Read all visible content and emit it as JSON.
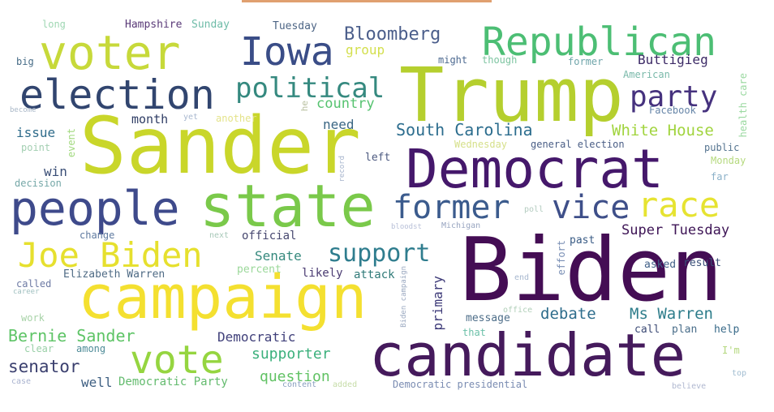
{
  "palette": {
    "background": "#ffffff",
    "accent_bar": "#e0a070"
  },
  "words": [
    {
      "text": "Trump",
      "color": "#b5cf2e"
    },
    {
      "text": "Sander",
      "color": "#c9d62a"
    },
    {
      "text": "Biden",
      "color": "#440d54"
    },
    {
      "text": "Democrat",
      "color": "#45186b"
    },
    {
      "text": "candidate",
      "color": "#451a5c"
    },
    {
      "text": "campaign",
      "color": "#f4e030"
    },
    {
      "text": "state",
      "color": "#7ac94a"
    },
    {
      "text": "people",
      "color": "#3e4a8b"
    },
    {
      "text": "voter",
      "color": "#c7d93a"
    },
    {
      "text": "election",
      "color": "#31456f"
    },
    {
      "text": "Republican",
      "color": "#4cbe74"
    },
    {
      "text": "Iowa",
      "color": "#3a4d87"
    },
    {
      "text": "vote",
      "color": "#95d540"
    },
    {
      "text": "Joe Biden",
      "color": "#e6e02e"
    },
    {
      "text": "former",
      "color": "#3b5b8d"
    },
    {
      "text": "vice",
      "color": "#3e4f89"
    },
    {
      "text": "race",
      "color": "#e6e331"
    },
    {
      "text": "political",
      "color": "#35897f"
    },
    {
      "text": "party",
      "color": "#46327e"
    },
    {
      "text": "support",
      "color": "#2f7d8e"
    },
    {
      "text": "Bloomberg",
      "color": "#4b5e8b"
    },
    {
      "text": "South Carolina",
      "color": "#2c6d8e"
    },
    {
      "text": "White House",
      "color": "#a1d43e"
    },
    {
      "text": "Super Tuesday",
      "color": "#3e1556"
    },
    {
      "text": "Bernie Sander",
      "color": "#5ec466"
    },
    {
      "text": "debate",
      "color": "#2e6d8c"
    },
    {
      "text": "Ms Warren",
      "color": "#2e7d8b"
    },
    {
      "text": "senator",
      "color": "#3a3f6e"
    },
    {
      "text": "supporter",
      "color": "#3bb07c"
    },
    {
      "text": "question",
      "color": "#61c264"
    },
    {
      "text": "Buttigieg",
      "color": "#3c2a66"
    },
    {
      "text": "country",
      "color": "#56c370"
    },
    {
      "text": "group",
      "color": "#d3df4d"
    },
    {
      "text": "need",
      "color": "#3a6683"
    },
    {
      "text": "issue",
      "color": "#2e6b8a"
    },
    {
      "text": "month",
      "color": "#2f3d65"
    },
    {
      "text": "win",
      "color": "#3b4f77"
    },
    {
      "text": "Senate",
      "color": "#35897d"
    },
    {
      "text": "official",
      "color": "#474870"
    },
    {
      "text": "likely",
      "color": "#4a3b72"
    },
    {
      "text": "attack",
      "color": "#2f7a78"
    },
    {
      "text": "Democratic",
      "color": "#40407a"
    },
    {
      "text": "primary",
      "color": "#3d3a78"
    },
    {
      "text": "Elizabeth Warren",
      "color": "#4f6b85"
    },
    {
      "text": "well",
      "color": "#3e5f82"
    },
    {
      "text": "Democratic Party",
      "color": "#63bb6e"
    },
    {
      "text": "message",
      "color": "#4e6e89"
    },
    {
      "text": "percent",
      "color": "#9bd89a"
    },
    {
      "text": "plan",
      "color": "#4a6e8a"
    },
    {
      "text": "call",
      "color": "#3c4a75"
    },
    {
      "text": "help",
      "color": "#3a6b8a"
    },
    {
      "text": "past",
      "color": "#395b85"
    },
    {
      "text": "asked",
      "color": "#426188"
    },
    {
      "text": "result",
      "color": "#3a4f78"
    },
    {
      "text": "left",
      "color": "#4d5a80"
    },
    {
      "text": "event",
      "color": "#a1d97e"
    },
    {
      "text": "effort",
      "color": "#7a8fb5"
    },
    {
      "text": "long",
      "color": "#9fd7b3"
    },
    {
      "text": "Hampshire",
      "color": "#5a3a78"
    },
    {
      "text": "Sunday",
      "color": "#6fbca8"
    },
    {
      "text": "Tuesday",
      "color": "#4d6585"
    },
    {
      "text": "big",
      "color": "#466b86"
    },
    {
      "text": "might",
      "color": "#4c6990"
    },
    {
      "text": "though",
      "color": "#7cc4a0"
    },
    {
      "text": "former",
      "color": "#6fa5aa"
    },
    {
      "text": "American",
      "color": "#7ab9aa"
    },
    {
      "text": "health care",
      "color": "#9ad9a0"
    },
    {
      "text": "Facebook",
      "color": "#6685a8"
    },
    {
      "text": "general election",
      "color": "#4a5e86"
    },
    {
      "text": "public",
      "color": "#557490"
    },
    {
      "text": "Monday",
      "color": "#b5d97e"
    },
    {
      "text": "far",
      "color": "#8ab0c8"
    },
    {
      "text": "Wednesday",
      "color": "#d6e08a"
    },
    {
      "text": "decision",
      "color": "#76a8a8"
    },
    {
      "text": "point",
      "color": "#a3cfb2"
    },
    {
      "text": "change",
      "color": "#5f7aa0"
    },
    {
      "text": "another",
      "color": "#e4e38a"
    },
    {
      "text": "called",
      "color": "#6d7aa4"
    },
    {
      "text": "work",
      "color": "#a8d3a8"
    },
    {
      "text": "clear",
      "color": "#9ad0a8"
    },
    {
      "text": "among",
      "color": "#4f8c98"
    },
    {
      "text": "that",
      "color": "#6bc0a8"
    },
    {
      "text": "I'm",
      "color": "#b4d87e"
    },
    {
      "text": "top",
      "color": "#a0bcd0"
    },
    {
      "text": "believe",
      "color": "#b0b8d0"
    },
    {
      "text": "content",
      "color": "#8aa0c0"
    },
    {
      "text": "added",
      "color": "#c6dca8"
    },
    {
      "text": "Democratic presidential",
      "color": "#7a8cb2"
    },
    {
      "text": "Biden campaign",
      "color": "#9aa8c0"
    },
    {
      "text": "Michigan",
      "color": "#98a5c0"
    },
    {
      "text": "office",
      "color": "#b0cfb8"
    },
    {
      "text": "end",
      "color": "#a8b8cf"
    },
    {
      "text": "next",
      "color": "#a7c8b8"
    },
    {
      "text": "record",
      "color": "#a6b4cc"
    },
    {
      "text": "poll",
      "color": "#b4ccc0"
    },
    {
      "text": "yet",
      "color": "#a9b8cf"
    },
    {
      "text": "become",
      "color": "#aab8c8"
    },
    {
      "text": "he",
      "color": "#b8c0a0"
    },
    {
      "text": "case",
      "color": "#a9b3cf"
    },
    {
      "text": "career",
      "color": "#a0c0c0"
    },
    {
      "text": "bloodst",
      "color": "#b8c0d8"
    }
  ]
}
